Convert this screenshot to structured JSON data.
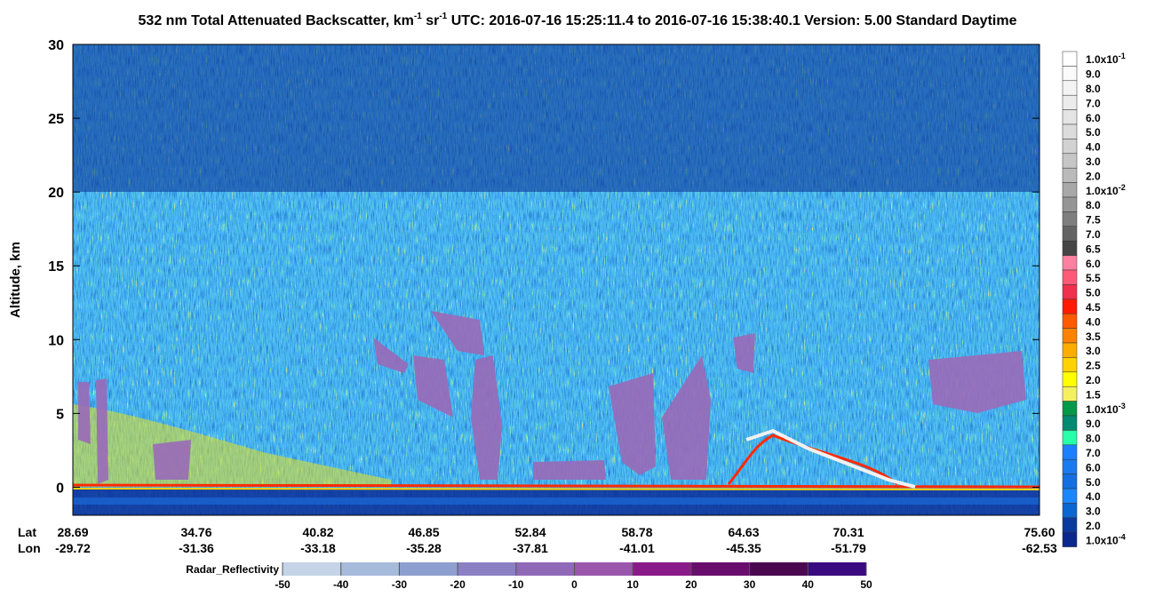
{
  "chart_data": {
    "type": "heatmap",
    "title": [
      "532 nm Total Attenuated Backscatter, km",
      "-1",
      " sr",
      "-1",
      "   UTC:  2016-07-16 15:25:11.4  to  2016-07-16 15:38:40.1    Version: 5.00  Standard  Daytime"
    ],
    "ylabel": "Altitude, km",
    "ylim": [
      -1.9,
      30
    ],
    "yticks": [
      0,
      5,
      10,
      15,
      20,
      25,
      30
    ],
    "x_rows": [
      {
        "name": "Lat",
        "labels": [
          "28.69",
          "34.76",
          "40.82",
          "46.85",
          "52.84",
          "58.78",
          "64.63",
          "70.31",
          "75.60"
        ]
      },
      {
        "name": "Lon",
        "labels": [
          "-29.72",
          "-31.36",
          "-33.18",
          "-35.28",
          "-37.81",
          "-41.01",
          "-45.35",
          "-51.79",
          "-62.53"
        ]
      }
    ],
    "colorbar": {
      "labels": [
        {
          "mantissa": "1.0x10",
          "exponent": "-1"
        },
        "9.0",
        "8.0",
        "7.0",
        "6.0",
        "5.0",
        "4.0",
        "3.0",
        "2.0",
        {
          "mantissa": "1.0x10",
          "exponent": "-2"
        },
        "8.0",
        "7.5",
        "7.0",
        "6.5",
        "6.0",
        "5.5",
        "5.0",
        "4.5",
        "4.0",
        "3.5",
        "3.0",
        "2.5",
        "2.0",
        "1.5",
        {
          "mantissa": "1.0x10",
          "exponent": "-3"
        },
        "9.0",
        "8.0",
        "7.0",
        "6.0",
        "5.0",
        "4.0",
        "3.0",
        "2.0",
        {
          "mantissa": "1.0x10",
          "exponent": "-4"
        }
      ],
      "colors": [
        "#ffffff",
        "#fafafa",
        "#f4f4f4",
        "#ececec",
        "#e4e4e4",
        "#dcdcdc",
        "#d2d2d2",
        "#c6c6c6",
        "#bababa",
        "#a8a8a8",
        "#969696",
        "#7e7e7e",
        "#646464",
        "#464646",
        "#ff80a0",
        "#ff5a78",
        "#f0304c",
        "#ff1a00",
        "#ff5a00",
        "#ff8200",
        "#ffac00",
        "#ffd200",
        "#ffff00",
        "#f4f060",
        "#00994a",
        "#008a72",
        "#28ffaa",
        "#1a80ff",
        "#1a7af0",
        "#1470e2",
        "#1a86ff",
        "#0a66d2",
        "#0a3aa0",
        "#0a2890"
      ]
    },
    "radar_colorbar": {
      "label": "Radar_Reflectivity",
      "ticks": [
        -50,
        -40,
        -30,
        -20,
        -10,
        0,
        10,
        20,
        30,
        40,
        50
      ],
      "colors": [
        "#c4d4e6",
        "#a6bada",
        "#8e9ece",
        "#8c80c4",
        "#9068b8",
        "#9a56ac",
        "#8a1a8a",
        "#6a0e6e",
        "#4a0850",
        "#3a0a80"
      ]
    }
  }
}
